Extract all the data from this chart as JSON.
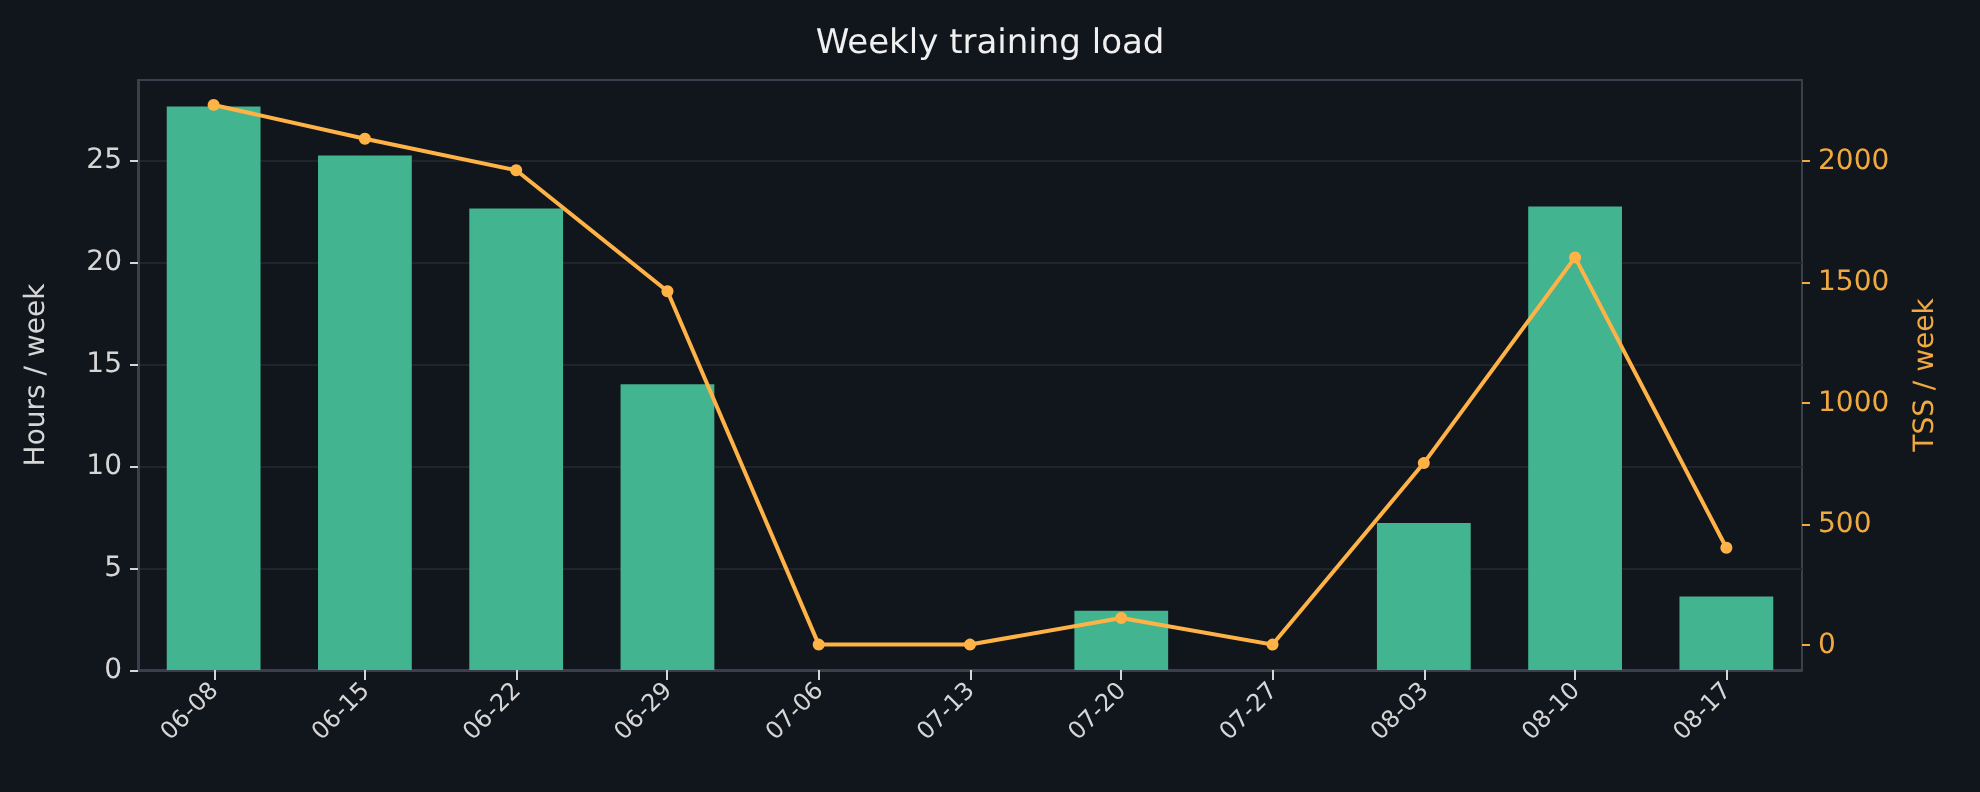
{
  "chart_data": {
    "type": "bar",
    "title": "Weekly training load",
    "ylabel": "Hours / week",
    "y2label": "TSS / week",
    "categories": [
      "06-08",
      "06-15",
      "06-22",
      "06-29",
      "07-06",
      "07-13",
      "07-20",
      "07-27",
      "08-03",
      "08-10",
      "08-17"
    ],
    "series": [
      {
        "name": null,
        "color": "#43b490",
        "values": [
          27.6,
          25.2,
          22.6,
          14.0,
          0,
          0,
          2.9,
          0,
          7.2,
          22.7,
          3.6
        ]
      },
      {
        "name": null,
        "type": "line",
        "axis": "y2",
        "color": "#ffb347",
        "values": [
          2230,
          2090,
          1960,
          1460,
          0,
          0,
          110,
          0,
          750,
          1600,
          400
        ]
      }
    ],
    "ylim": [
      0,
      28.9
    ],
    "yticks": [
      0,
      5,
      10,
      15,
      20,
      25
    ],
    "y2lim": [
      -105,
      2333
    ],
    "y2ticks": [
      0,
      500,
      1000,
      1500,
      2000
    ],
    "grid": "y",
    "marker": "circle"
  }
}
